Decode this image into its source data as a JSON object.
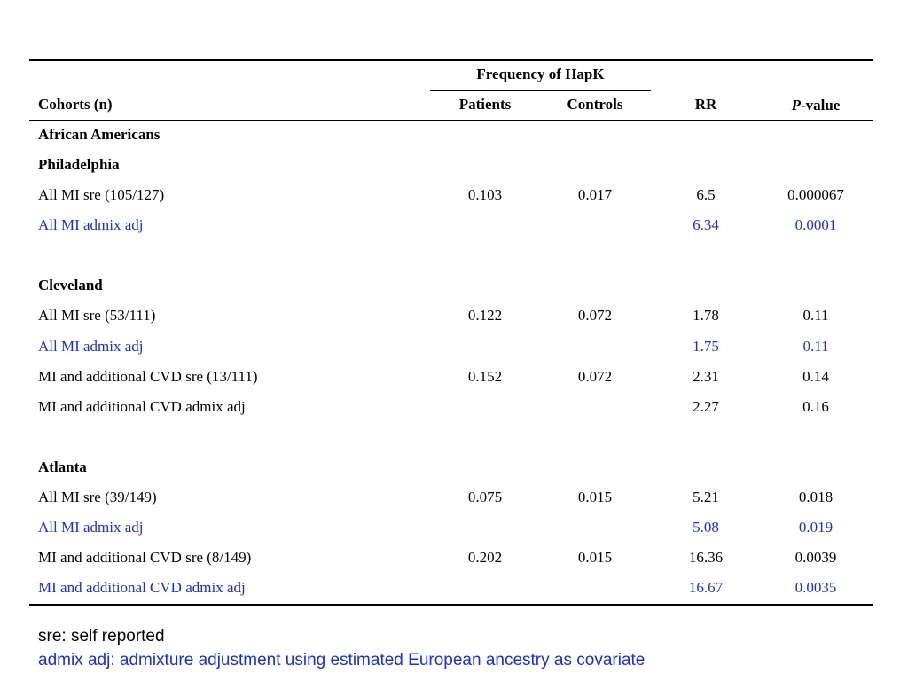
{
  "header": {
    "group_label": "Frequency of HapK",
    "cohorts": "Cohorts (n)",
    "patients": "Patients",
    "controls": "Controls",
    "rr": "RR",
    "pvalue_italic": "P",
    "pvalue_rest": "-value"
  },
  "sections": {
    "african_americans": "African Americans",
    "philadelphia": "Philadelphia",
    "cleveland": "Cleveland",
    "atlanta": "Atlanta"
  },
  "rows": [
    {
      "label": "All MI sre (105/127)",
      "patients": "0.103",
      "controls": "0.017",
      "rr": "6.5",
      "p": "0.000067"
    },
    {
      "label": "All MI  admix adj",
      "patients": "",
      "controls": "",
      "rr": "6.34",
      "p": "0.0001"
    },
    {
      "label": "All MI sre  (53/111)",
      "patients": "0.122",
      "controls": "0.072",
      "rr": "1.78",
      "p": "0.11"
    },
    {
      "label": "All MI  admix adj",
      "patients": "",
      "controls": "",
      "rr": "1.75",
      "p": "0.11"
    },
    {
      "label": "MI and additional CVD sre (13/111)",
      "patients": "0.152",
      "controls": "0.072",
      "rr": "2.31",
      "p": "0.14"
    },
    {
      "label": "MI and additional CVD admix adj",
      "patients": "",
      "controls": "",
      "rr": "2.27",
      "p": "0.16"
    },
    {
      "label": "All MI sre  (39/149)",
      "patients": "0.075",
      "controls": "0.015",
      "rr": "5.21",
      "p": "0.018"
    },
    {
      "label": "All MI  admix adj",
      "patients": "",
      "controls": "",
      "rr": "5.08",
      "p": "0.019"
    },
    {
      "label": "MI and additional CVD sre (8/149)",
      "patients": "0.202",
      "controls": "0.015",
      "rr": "16.36",
      "p": "0.0039"
    },
    {
      "label": "MI and additional CVD admix adj",
      "patients": "",
      "controls": "",
      "rr": "16.67",
      "p": "0.0035"
    }
  ],
  "notes": {
    "sre": "sre: self reported",
    "admix": "admix adj: admixture adjustment using estimated European ancestry as covariate"
  },
  "colors": {
    "adjusted_text": "#1a2fd6",
    "default_text": "#000000"
  }
}
